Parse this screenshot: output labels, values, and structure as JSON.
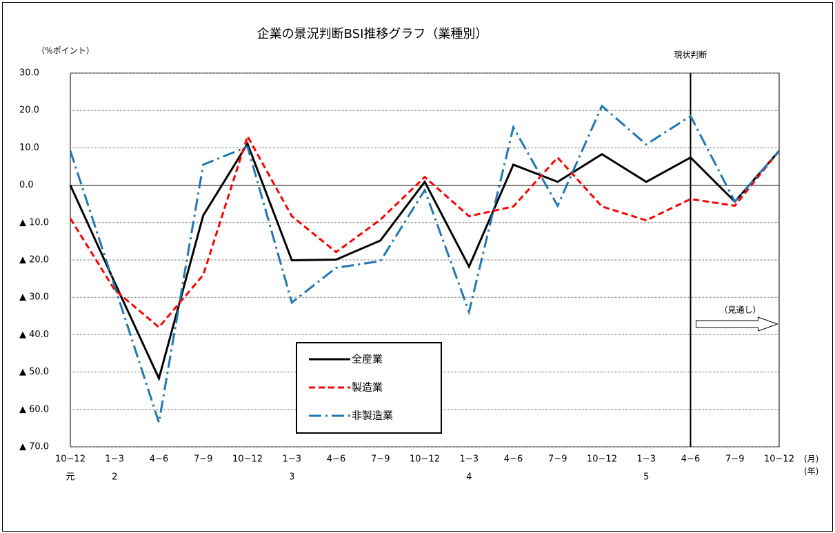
{
  "chart_data": {
    "type": "line",
    "title": "企業の景況判断BSI推移グラフ（業種別）",
    "y_axis_label": "（%ポイント）",
    "x_unit_label": "(月)",
    "year_unit_label": "(年)",
    "current_label": "現状判断",
    "outlook_label": "（見通し）",
    "divider_index": 14,
    "categories": [
      "10−12",
      "1−3",
      "4−6",
      "7−9",
      "10−12",
      "1−3",
      "4−6",
      "7−9",
      "10−12",
      "1−3",
      "4−6",
      "7−9",
      "10−12",
      "1−3",
      "4−6",
      "7−9",
      "10−12"
    ],
    "year_labels": [
      "元",
      "2",
      null,
      null,
      null,
      "3",
      null,
      null,
      null,
      "4",
      null,
      null,
      null,
      "5",
      null,
      null,
      null
    ],
    "series": [
      {
        "name": "全産業",
        "color": "#000000",
        "dash": "solid",
        "values": [
          0.0,
          -26.0,
          -51.7,
          -8.1,
          11.1,
          -20.1,
          -19.9,
          -14.8,
          0.9,
          -21.8,
          5.5,
          0.9,
          8.3,
          0.9,
          7.4,
          -4.4,
          9.2
        ]
      },
      {
        "name": "製造業",
        "color": "#ff0000",
        "dash": "dashed",
        "values": [
          -8.9,
          -28.0,
          -38.0,
          -24.0,
          13.1,
          -8.3,
          -17.9,
          -9.2,
          2.2,
          -8.3,
          -5.7,
          7.4,
          -5.7,
          -9.4,
          -3.7,
          -5.5,
          9.2
        ]
      },
      {
        "name": "非製造業",
        "color": "#1f77b4",
        "dash": "dashdot",
        "values": [
          9.2,
          -27.0,
          -63.5,
          5.5,
          10.3,
          -31.4,
          -22.1,
          -20.3,
          -1.3,
          -33.9,
          15.5,
          -5.5,
          21.2,
          10.9,
          18.5,
          -4.4,
          9.2
        ]
      }
    ],
    "ylim": [
      -70,
      30
    ],
    "yticks": [
      {
        "value": 30,
        "label": "30.0"
      },
      {
        "value": 20,
        "label": "20.0"
      },
      {
        "value": 10,
        "label": "10.0"
      },
      {
        "value": 0,
        "label": "0.0"
      },
      {
        "value": -10,
        "label": "▲ 10.0"
      },
      {
        "value": -20,
        "label": "▲ 20.0"
      },
      {
        "value": -30,
        "label": "▲ 30.0"
      },
      {
        "value": -40,
        "label": "▲ 40.0"
      },
      {
        "value": -50,
        "label": "▲ 50.0"
      },
      {
        "value": -60,
        "label": "▲ 60.0"
      },
      {
        "value": -70,
        "label": "▲ 70.0"
      }
    ],
    "grid": true
  }
}
